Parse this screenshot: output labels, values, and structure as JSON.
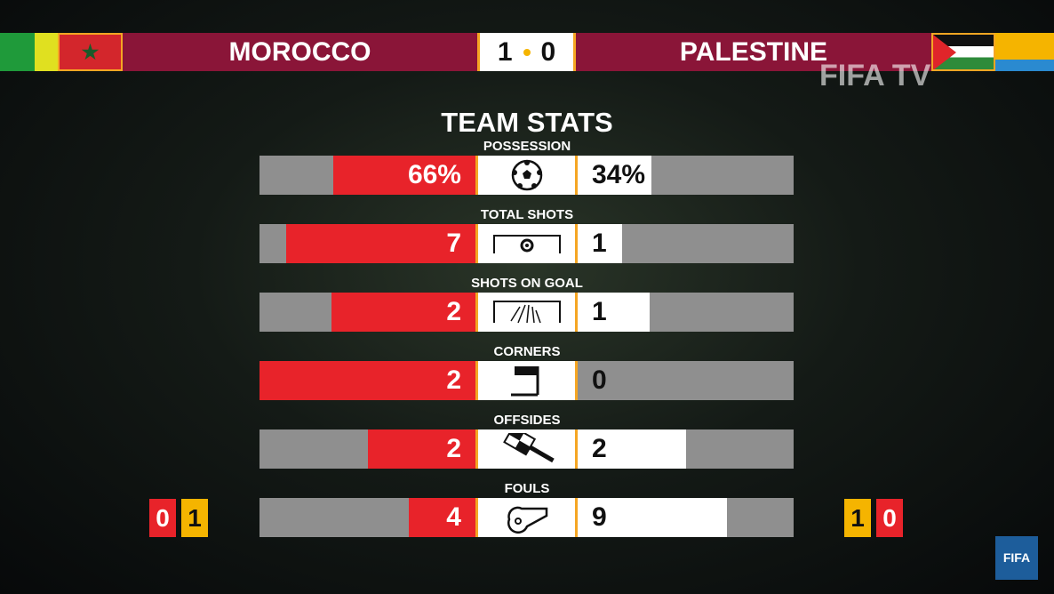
{
  "header": {
    "home": "MOROCCO",
    "away": "PALESTINE",
    "home_score": "1",
    "away_score": "0"
  },
  "watermark": "FIFA TV",
  "logo": "FIFA",
  "title": "TEAM STATS",
  "stats": [
    {
      "label": "POSSESSION",
      "home": "66%",
      "away": "34%",
      "home_val": 66,
      "away_val": 34,
      "icon": "ball-icon"
    },
    {
      "label": "TOTAL SHOTS",
      "home": "7",
      "away": "1",
      "home_val": 7,
      "away_val": 1,
      "icon": "goal-target-icon"
    },
    {
      "label": "SHOTS ON GOAL",
      "home": "2",
      "away": "1",
      "home_val": 2,
      "away_val": 1,
      "icon": "goal-net-icon"
    },
    {
      "label": "CORNERS",
      "home": "2",
      "away": "0",
      "home_val": 2,
      "away_val": 0,
      "icon": "corner-flag-icon"
    },
    {
      "label": "OFFSIDES",
      "home": "2",
      "away": "2",
      "home_val": 2,
      "away_val": 2,
      "icon": "offside-flag-icon"
    },
    {
      "label": "FOULS",
      "home": "4",
      "away": "9",
      "home_val": 4,
      "away_val": 9,
      "icon": "whistle-icon"
    }
  ],
  "cards": {
    "home_red": "0",
    "home_yellow": "1",
    "away_yellow": "1",
    "away_red": "0"
  },
  "colors": {
    "header": "#8a1538",
    "home": "#e8232a",
    "away": "#ffffff",
    "accent": "#f5a623"
  }
}
